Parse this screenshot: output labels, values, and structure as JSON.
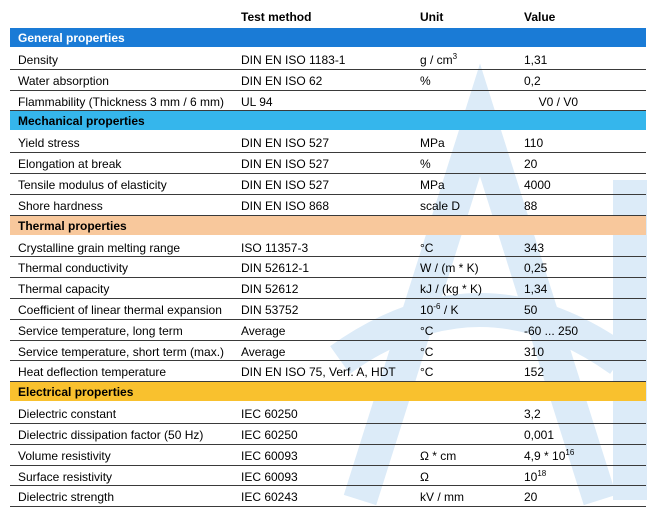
{
  "header": {
    "test_method": "Test method",
    "unit": "Unit",
    "value": "Value"
  },
  "sections": {
    "general": {
      "title": "General properties",
      "rows": [
        {
          "property": "Density",
          "method": "DIN EN ISO 1183-1",
          "unit_base": "g / cm",
          "unit_sup": "3",
          "value": "1,31"
        },
        {
          "property": "Water absorption",
          "method": "DIN EN ISO 62",
          "unit_base": "%",
          "value": "0,2"
        },
        {
          "property": "Flammability (Thickness 3 mm / 6 mm)",
          "method": "UL 94",
          "unit_base": "",
          "value": "V0 / V0"
        }
      ]
    },
    "mechanical": {
      "title": "Mechanical properties",
      "rows": [
        {
          "property": "Yield stress",
          "method": "DIN EN ISO 527",
          "unit_base": "MPa",
          "value": "110"
        },
        {
          "property": "Elongation at break",
          "method": "DIN EN ISO 527",
          "unit_base": "%",
          "value": "20"
        },
        {
          "property": "Tensile modulus of elasticity",
          "method": "DIN EN ISO 527",
          "unit_base": "MPa",
          "value": "4000"
        },
        {
          "property": "Shore hardness",
          "method": "DIN EN ISO 868",
          "unit_base": "scale D",
          "value": "88"
        }
      ]
    },
    "thermal": {
      "title": "Thermal properties",
      "rows": [
        {
          "property": "Crystalline grain melting range",
          "method": "ISO 11357-3",
          "unit_base": "°C",
          "value": "343"
        },
        {
          "property": "Thermal conductivity",
          "method": "DIN 52612-1",
          "unit_base": "W / (m * K)",
          "value": "0,25"
        },
        {
          "property": "Thermal capacity",
          "method": "DIN 52612",
          "unit_base": "kJ / (kg * K)",
          "value": "1,34"
        },
        {
          "property": "Coefficient of linear thermal expansion",
          "method": "DIN 53752",
          "unit_pre": "10",
          "unit_sup": "-6",
          "unit_base": " / K",
          "value": "50"
        },
        {
          "property": "Service temperature, long term",
          "method": "Average",
          "unit_base": "°C",
          "value": "-60 ... 250"
        },
        {
          "property": "Service temperature, short term (max.)",
          "method": "Average",
          "unit_base": "°C",
          "value": "310"
        },
        {
          "property": "Heat deflection temperature",
          "method": "DIN EN ISO 75, Verf. A, HDT",
          "unit_base": "°C",
          "value": "152"
        }
      ]
    },
    "electrical": {
      "title": "Electrical properties",
      "rows": [
        {
          "property": "Dielectric constant",
          "method": "IEC 60250",
          "unit_base": "",
          "value": "3,2"
        },
        {
          "property": "Dielectric dissipation factor (50 Hz)",
          "method": "IEC 60250",
          "unit_base": "",
          "value": "0,001"
        },
        {
          "property": "Volume resistivity",
          "method": "IEC 60093",
          "unit_base": "Ω * cm",
          "value": "4,9 * 10",
          "value_sup": "16"
        },
        {
          "property": "Surface resistivity",
          "method": "IEC 60093",
          "unit_base": "Ω",
          "value": "10",
          "value_sup": "18"
        },
        {
          "property": "Dielectric strength",
          "method": "IEC 60243",
          "unit_base": "kV / mm",
          "value": "20"
        }
      ]
    }
  },
  "colors": {
    "general": "#1a7bd6",
    "mechanical": "#35b6ec",
    "thermal": "#f8c89c",
    "electrical": "#f9c12e"
  }
}
